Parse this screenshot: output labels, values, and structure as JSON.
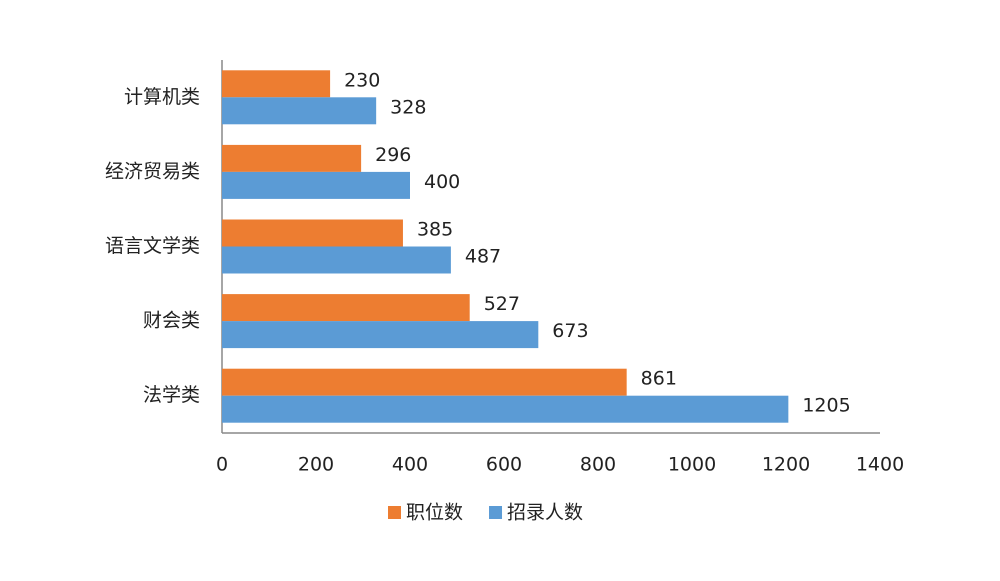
{
  "chart_data": {
    "type": "bar",
    "orientation": "horizontal",
    "categories": [
      "计算机类",
      "经济贸易类",
      "语言文学类",
      "财会类",
      "法学类"
    ],
    "series": [
      {
        "name": "职位数",
        "color": "#ED7D31",
        "values": [
          230,
          296,
          385,
          527,
          861
        ]
      },
      {
        "name": "招录人数",
        "color": "#5B9BD5",
        "values": [
          328,
          400,
          487,
          673,
          1205
        ]
      }
    ],
    "xlim": [
      0,
      1400
    ],
    "xticks": [
      0,
      200,
      400,
      600,
      800,
      1000,
      1200,
      1400
    ],
    "grid": false,
    "legend": "bottom",
    "data_labels": true
  }
}
